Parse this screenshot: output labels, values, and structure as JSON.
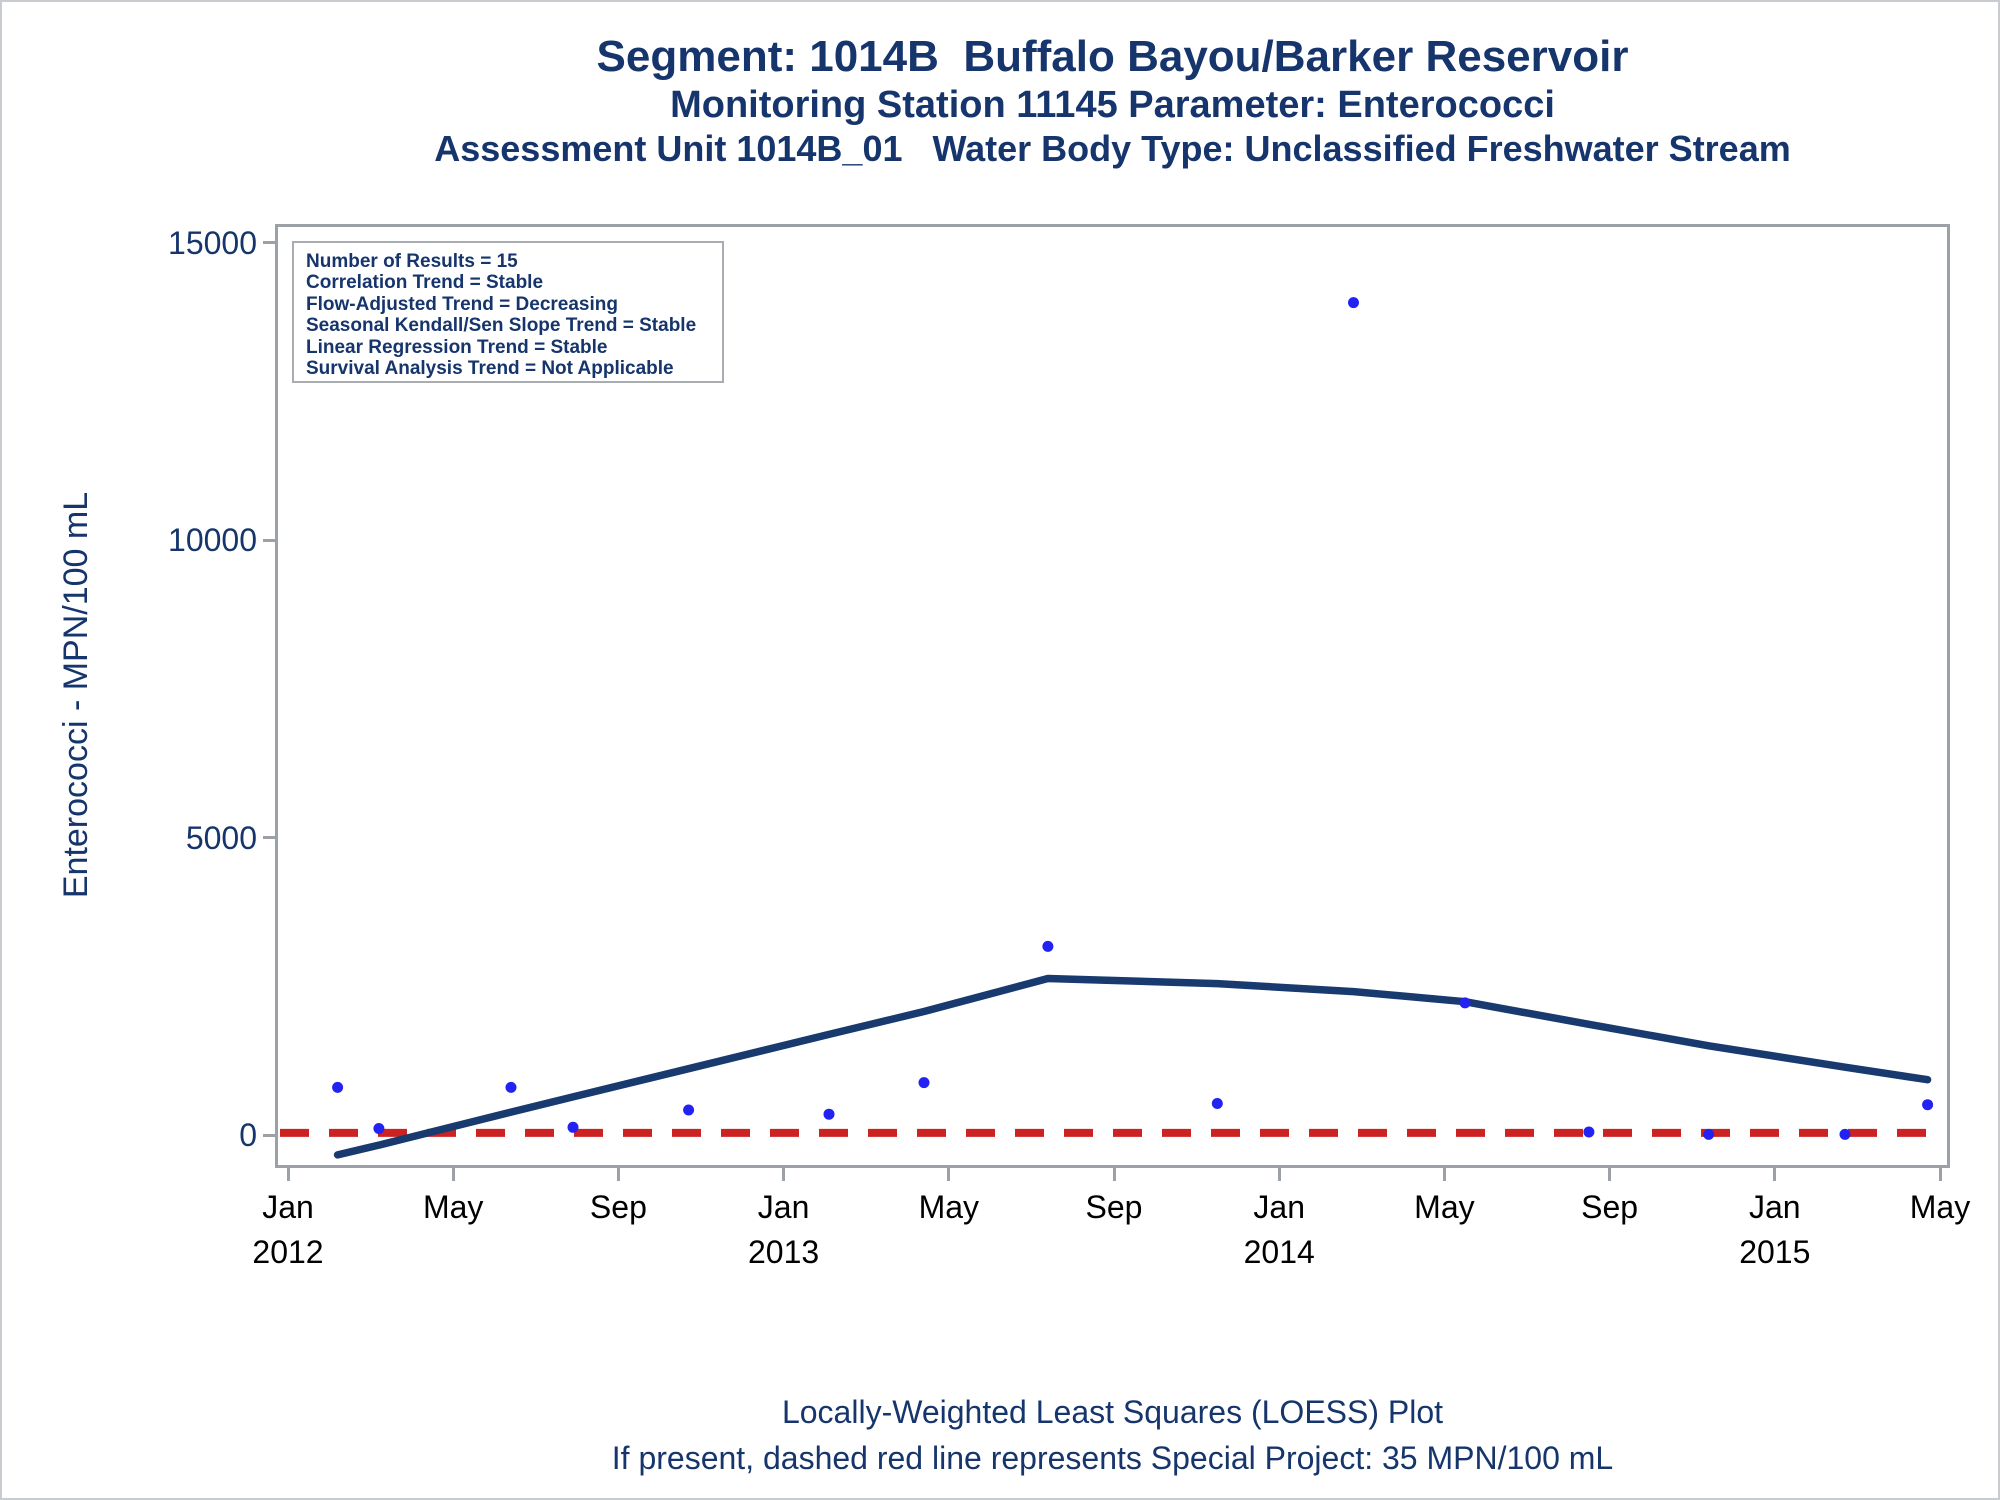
{
  "header": {
    "title1": "Segment: 1014B  Buffalo Bayou/Barker Reservoir",
    "title2": "Monitoring Station 11145 Parameter: Enterococci",
    "title3": "Assessment Unit 1014B_01   Water Body Type: Unclassified Freshwater Stream"
  },
  "stats_box": {
    "lines": [
      "Number of Results = 15",
      "Correlation Trend = Stable",
      "Flow-Adjusted Trend = Decreasing",
      "Seasonal Kendall/Sen Slope Trend = Stable",
      "Linear Regression Trend = Stable",
      "Survival Analysis Trend = Not Applicable"
    ]
  },
  "footer": {
    "line1": "Locally-Weighted Least Squares (LOESS) Plot",
    "line2": "If present, dashed red line represents Special Project: 35 MPN/100 mL"
  },
  "chart_data": {
    "type": "scatter",
    "title": "Segment: 1014B Buffalo Bayou/Barker Reservoir — Monitoring Station 11145 — Enterococci",
    "y_axis": {
      "label": "Enterococci - MPN/100 mL",
      "ticks": [
        0,
        5000,
        10000,
        15000
      ],
      "ylim": [
        -500,
        15250
      ]
    },
    "x_axis": {
      "xlim_months": [
        "Jan 2012",
        "May 2015"
      ],
      "ticks": [
        {
          "m": 0,
          "label": "Jan",
          "year": "2012"
        },
        {
          "m": 4,
          "label": "May"
        },
        {
          "m": 8,
          "label": "Sep"
        },
        {
          "m": 12,
          "label": "Jan",
          "year": "2013"
        },
        {
          "m": 16,
          "label": "May"
        },
        {
          "m": 20,
          "label": "Sep"
        },
        {
          "m": 24,
          "label": "Jan",
          "year": "2014"
        },
        {
          "m": 28,
          "label": "May"
        },
        {
          "m": 32,
          "label": "Sep"
        },
        {
          "m": 36,
          "label": "Jan",
          "year": "2015"
        },
        {
          "m": 40,
          "label": "May"
        }
      ]
    },
    "points": [
      {
        "date": "Feb 2012",
        "m": 1.2,
        "value": 800
      },
      {
        "date": "Mar 2012",
        "m": 2.2,
        "value": 110
      },
      {
        "date": "Jun 2012",
        "m": 5.4,
        "value": 800
      },
      {
        "date": "Aug 2012",
        "m": 6.9,
        "value": 130
      },
      {
        "date": "Oct 2012",
        "m": 9.7,
        "value": 420
      },
      {
        "date": "Feb 2013",
        "m": 13.1,
        "value": 350
      },
      {
        "date": "Apr 2013",
        "m": 15.4,
        "value": 880
      },
      {
        "date": "Jul 2013",
        "m": 18.4,
        "value": 3170
      },
      {
        "date": "Nov 2013",
        "m": 22.5,
        "value": 530
      },
      {
        "date": "Mar 2014",
        "m": 25.8,
        "value": 13990
      },
      {
        "date": "May 2014",
        "m": 28.5,
        "value": 2220
      },
      {
        "date": "Aug 2014",
        "m": 31.5,
        "value": 50
      },
      {
        "date": "Nov 2014",
        "m": 34.4,
        "value": 10
      },
      {
        "date": "Feb 2015",
        "m": 37.7,
        "value": 10
      },
      {
        "date": "Apr 2015",
        "m": 39.7,
        "value": 510
      }
    ],
    "loess_line": [
      [
        1.2,
        -335
      ],
      [
        2.2,
        -170
      ],
      [
        5.4,
        385
      ],
      [
        6.9,
        640
      ],
      [
        9.7,
        1115
      ],
      [
        13.1,
        1690
      ],
      [
        15.4,
        2075
      ],
      [
        18.4,
        2630
      ],
      [
        22.5,
        2545
      ],
      [
        25.8,
        2410
      ],
      [
        28.5,
        2240
      ],
      [
        31.5,
        1860
      ],
      [
        34.4,
        1500
      ],
      [
        37.7,
        1140
      ],
      [
        39.7,
        930
      ]
    ],
    "special_project": {
      "value": 35,
      "label": "Special Project: 35 MPN/100 mL"
    },
    "legend_position": "top-left-inside",
    "grid": false,
    "colors": {
      "navy_text": "#16356c",
      "loess_navy": "#183a6e",
      "point_blue": "#2222f2",
      "special_project_red": "#cc2222",
      "axis_gray": "#9ba1a6",
      "x_label_black": "#000000",
      "outer_border": "#c8ccd0"
    }
  }
}
